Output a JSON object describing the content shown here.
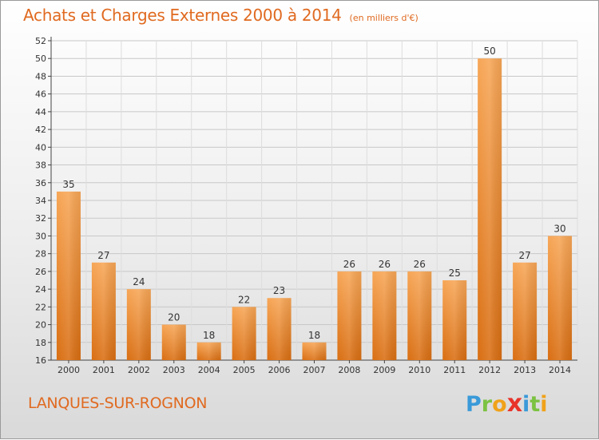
{
  "title": "Achats et Charges Externes 2000 à 2014",
  "subtitle": "(en milliers d'€)",
  "place": "LANQUES-SUR-ROGNON",
  "logo": {
    "letters": [
      "P",
      "r",
      "o",
      "x",
      "i",
      "t",
      "i"
    ],
    "colors": [
      "#3a9ad9",
      "#7cc242",
      "#f0a21a",
      "#e8332a",
      "#3a9ad9",
      "#7cc242",
      "#f0a21a"
    ]
  },
  "colors": {
    "bar": "#ee8a2e",
    "bar_light": "#f6a655",
    "title": "#e06a20"
  },
  "chart_data": {
    "type": "bar",
    "categories": [
      "2000",
      "2001",
      "2002",
      "2003",
      "2004",
      "2005",
      "2006",
      "2007",
      "2008",
      "2009",
      "2010",
      "2011",
      "2012",
      "2013",
      "2014"
    ],
    "values": [
      35,
      27,
      24,
      20,
      18,
      22,
      23,
      18,
      26,
      26,
      26,
      25,
      50,
      27,
      30
    ],
    "ylim": [
      16,
      52
    ],
    "yticks": [
      16,
      18,
      20,
      22,
      24,
      26,
      28,
      30,
      32,
      34,
      36,
      38,
      40,
      42,
      44,
      46,
      48,
      50,
      52
    ],
    "grid": true
  }
}
